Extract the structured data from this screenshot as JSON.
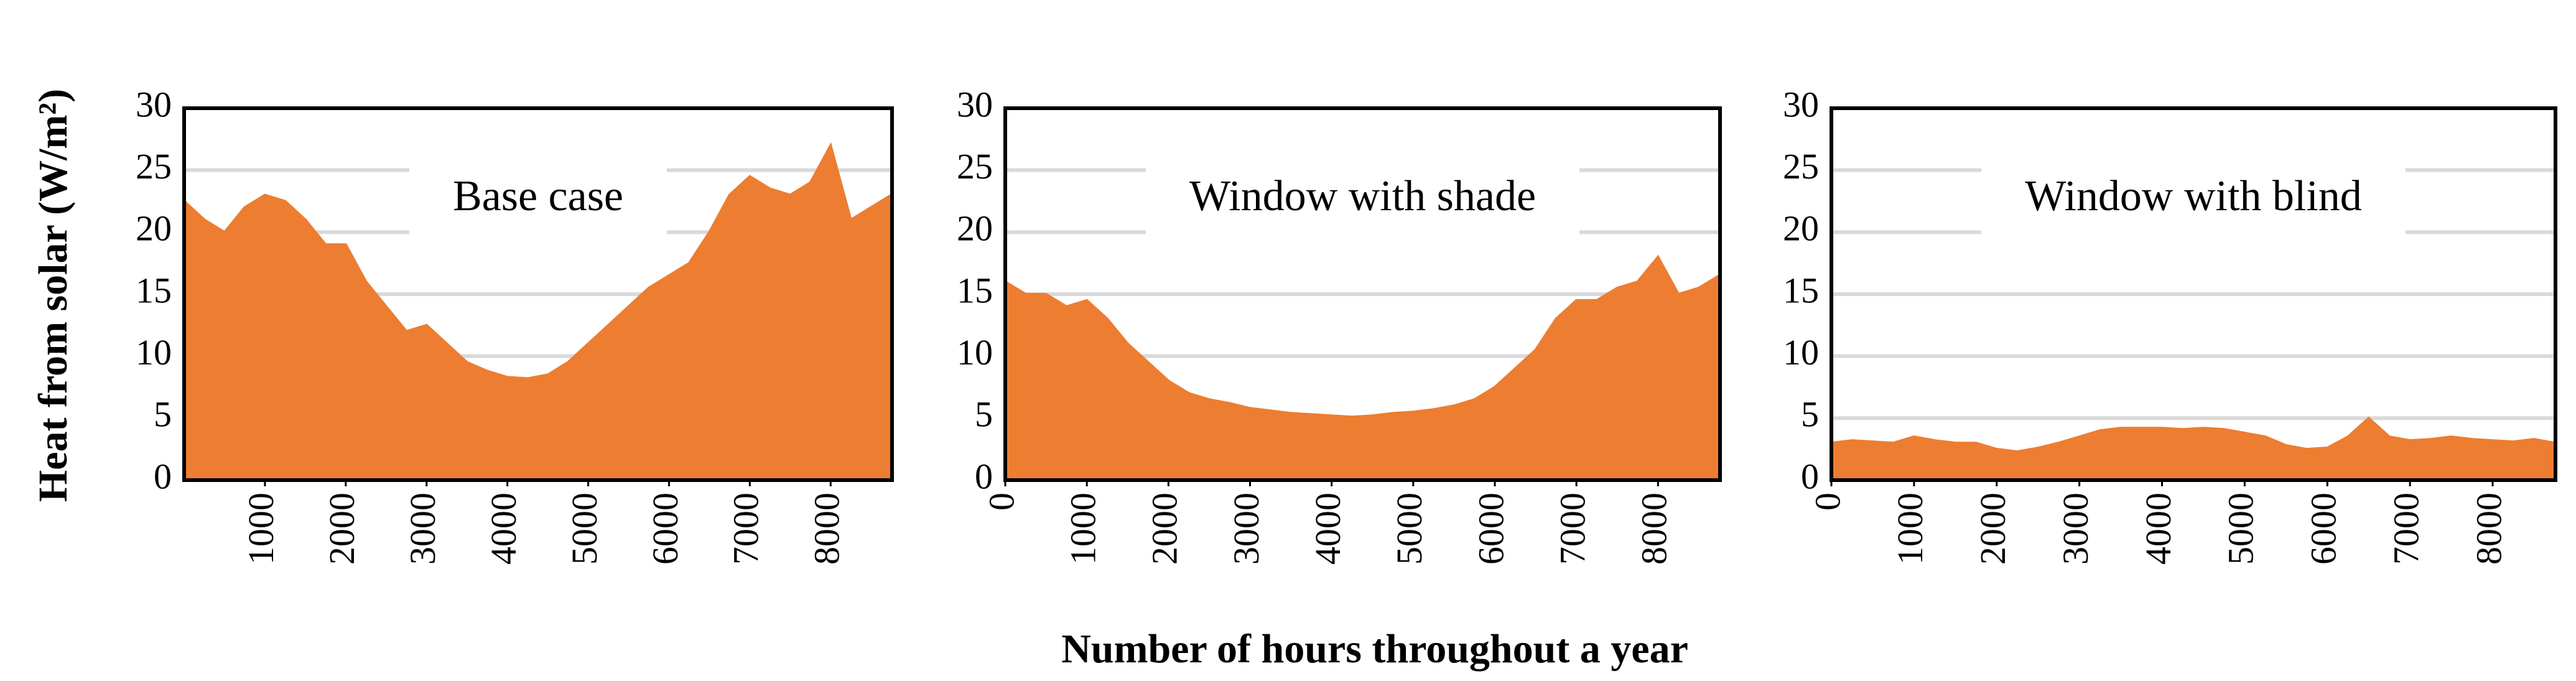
{
  "y_label": "Heat from solar (W/m²)",
  "x_label": "Number of hours throughout a year",
  "chart_data": [
    {
      "type": "area",
      "title": "Base case",
      "color": "#ed7d31",
      "grid": true,
      "xlim": [
        0,
        8760
      ],
      "xticks": [
        1000,
        2000,
        3000,
        4000,
        5000,
        6000,
        7000,
        8000
      ],
      "ylim": [
        0,
        30
      ],
      "yticks": [
        0,
        5,
        10,
        15,
        20,
        25,
        30
      ],
      "x": [
        0,
        250,
        500,
        750,
        1000,
        1250,
        1500,
        1750,
        2000,
        2250,
        2500,
        2750,
        3000,
        3250,
        3500,
        3750,
        4000,
        4250,
        4500,
        4750,
        5000,
        5250,
        5500,
        5750,
        6000,
        6250,
        6500,
        6750,
        7000,
        7250,
        7500,
        7750,
        8000,
        8250,
        8500,
        8750
      ],
      "values": [
        22.5,
        21,
        20,
        22,
        23,
        22.5,
        21,
        19,
        19,
        16,
        14,
        12,
        12.5,
        11,
        9.5,
        8.8,
        8.3,
        8.2,
        8.5,
        9.5,
        11,
        12.5,
        14,
        15.5,
        16.5,
        17.5,
        20,
        23,
        24.5,
        23.5,
        23,
        24,
        27,
        21,
        22,
        23
      ]
    },
    {
      "type": "area",
      "title": "Window with shade",
      "color": "#ed7d31",
      "grid": true,
      "xlim": [
        0,
        8760
      ],
      "xticks": [
        0,
        1000,
        2000,
        3000,
        4000,
        5000,
        6000,
        7000,
        8000
      ],
      "ylim": [
        0,
        30
      ],
      "yticks": [
        0,
        5,
        10,
        15,
        20,
        25,
        30
      ],
      "x": [
        0,
        250,
        500,
        750,
        1000,
        1250,
        1500,
        1750,
        2000,
        2250,
        2500,
        2750,
        3000,
        3250,
        3500,
        3750,
        4000,
        4250,
        4500,
        4750,
        5000,
        5250,
        5500,
        5750,
        6000,
        6250,
        6500,
        6750,
        7000,
        7250,
        7500,
        7750,
        8000,
        8250,
        8500,
        8750
      ],
      "values": [
        16,
        15,
        15,
        14,
        14.5,
        13,
        11,
        9.5,
        8,
        7,
        6.5,
        6.2,
        5.8,
        5.6,
        5.4,
        5.3,
        5.2,
        5.1,
        5.2,
        5.4,
        5.5,
        5.7,
        6,
        6.5,
        7.5,
        9,
        10.5,
        13,
        14.5,
        14.5,
        15.5,
        16,
        18,
        15,
        15.5,
        16.5
      ]
    },
    {
      "type": "area",
      "title": "Window with blind",
      "color": "#ed7d31",
      "grid": true,
      "xlim": [
        0,
        8760
      ],
      "xticks": [
        0,
        1000,
        2000,
        3000,
        4000,
        5000,
        6000,
        7000,
        8000
      ],
      "ylim": [
        0,
        30
      ],
      "yticks": [
        0,
        5,
        10,
        15,
        20,
        25,
        30
      ],
      "x": [
        0,
        250,
        500,
        750,
        1000,
        1250,
        1500,
        1750,
        2000,
        2250,
        2500,
        2750,
        3000,
        3250,
        3500,
        3750,
        4000,
        4250,
        4500,
        4750,
        5000,
        5250,
        5500,
        5750,
        6000,
        6250,
        6500,
        6750,
        7000,
        7250,
        7500,
        7750,
        8000,
        8250,
        8500,
        8750
      ],
      "values": [
        3,
        3.2,
        3.1,
        3,
        3.5,
        3.2,
        3,
        3,
        2.5,
        2.3,
        2.6,
        3,
        3.5,
        4,
        4.2,
        4.2,
        4.2,
        4.1,
        4.2,
        4.1,
        3.8,
        3.5,
        2.8,
        2.5,
        2.6,
        3.5,
        5,
        3.5,
        3.2,
        3.3,
        3.5,
        3.3,
        3.2,
        3.1,
        3.3,
        3
      ]
    }
  ]
}
